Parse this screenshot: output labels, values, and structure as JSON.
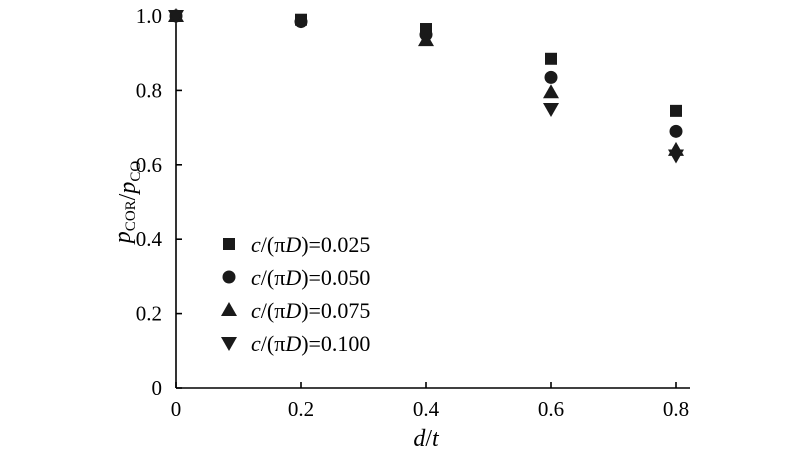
{
  "chart_data": {
    "type": "scatter",
    "xlabel_parts": [
      "d",
      "/",
      "t"
    ],
    "ylabel_parts": [
      {
        "text": "p",
        "sub": "COR"
      },
      {
        "text": "/",
        "sub": ""
      },
      {
        "text": "p",
        "sub": "CO"
      }
    ],
    "xlim": [
      0,
      0.8
    ],
    "ylim": [
      0,
      1.0
    ],
    "xticks": [
      "0",
      "0.2",
      "0.4",
      "0.6",
      "0.8"
    ],
    "xtick_values": [
      0,
      0.2,
      0.4,
      0.6,
      0.8
    ],
    "yticks": [
      "0",
      "0.2",
      "0.4",
      "0.6",
      "0.8",
      "1.0"
    ],
    "ytick_values": [
      0,
      0.2,
      0.4,
      0.6,
      0.8,
      1.0
    ],
    "grid": false,
    "legend_position": "lower-left",
    "series": [
      {
        "name": "c/(πD)=0.025",
        "name_parts": [
          "c",
          "/(π",
          "D",
          ")=0.025"
        ],
        "marker": "square",
        "x": [
          0,
          0.2,
          0.4,
          0.6,
          0.8
        ],
        "y": [
          1.0,
          0.99,
          0.965,
          0.885,
          0.745
        ]
      },
      {
        "name": "c/(πD)=0.050",
        "name_parts": [
          "c",
          "/(π",
          "D",
          ")=0.050"
        ],
        "marker": "circle",
        "x": [
          0,
          0.2,
          0.4,
          0.6,
          0.8
        ],
        "y": [
          1.0,
          0.985,
          0.95,
          0.835,
          0.69
        ]
      },
      {
        "name": "c/(πD)=0.075",
        "name_parts": [
          "c",
          "/(π",
          "D",
          ")=0.075"
        ],
        "marker": "triangle-up",
        "x": [
          0,
          0.4,
          0.6,
          0.8
        ],
        "y": [
          1.0,
          0.935,
          0.795,
          0.64
        ]
      },
      {
        "name": "c/(πD)=0.100",
        "name_parts": [
          "c",
          "/(π",
          "D",
          ")=0.100"
        ],
        "marker": "triangle-down",
        "x": [
          0,
          0.6,
          0.8
        ],
        "y": [
          1.0,
          0.75,
          0.625
        ]
      }
    ],
    "colors": {
      "marker": "#1a1a1a",
      "axis": "#000000"
    }
  }
}
